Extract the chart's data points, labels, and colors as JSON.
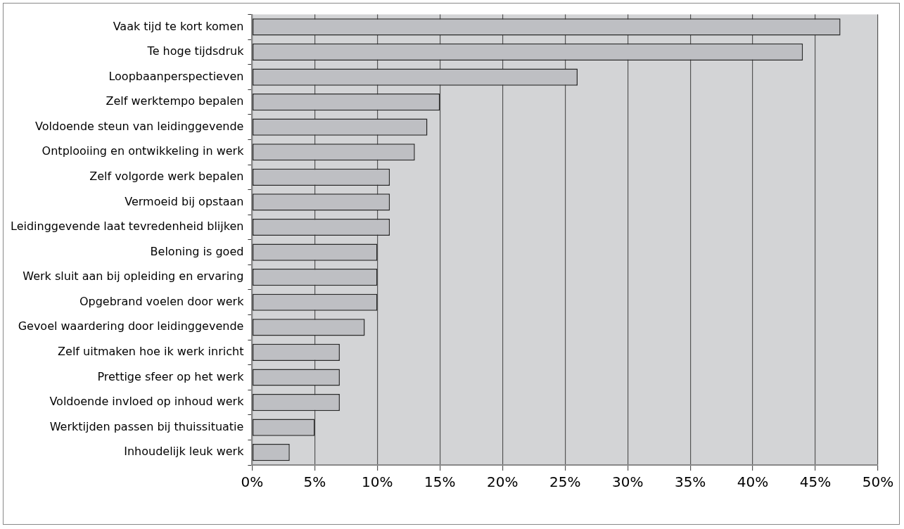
{
  "chart_data": {
    "type": "bar",
    "orientation": "horizontal",
    "categories": [
      "Vaak tijd te kort komen",
      "Te hoge tijdsdruk",
      "Loopbaanperspectieven",
      "Zelf werktempo bepalen",
      "Voldoende steun van leidinggevende",
      "Ontplooiing en ontwikkeling in werk",
      "Zelf volgorde werk bepalen",
      "Vermoeid bij opstaan",
      "Leidinggevende laat tevredenheid blijken",
      "Beloning is goed",
      "Werk sluit aan bij opleiding en ervaring",
      "Opgebrand voelen door werk",
      "Gevoel waardering door leidinggevende",
      "Zelf uitmaken hoe ik werk inricht",
      "Prettige sfeer op het werk",
      "Voldoende invloed op inhoud werk",
      "Werktijden passen bij thuissituatie",
      "Inhoudelijk leuk werk"
    ],
    "values": [
      47,
      44,
      26,
      15,
      14,
      13,
      11,
      11,
      11,
      10,
      10,
      10,
      9,
      7,
      7,
      7,
      5,
      3
    ],
    "color": "#bebfc3",
    "xlim": [
      0,
      50
    ],
    "xticks": [
      {
        "value": 0,
        "label": "0%"
      },
      {
        "value": 5,
        "label": "5%"
      },
      {
        "value": 10,
        "label": "10%"
      },
      {
        "value": 15,
        "label": "15%"
      },
      {
        "value": 20,
        "label": "20%"
      },
      {
        "value": 25,
        "label": "25%"
      },
      {
        "value": 30,
        "label": "30%"
      },
      {
        "value": 35,
        "label": "35%"
      },
      {
        "value": 40,
        "label": "40%"
      },
      {
        "value": 45,
        "label": "45%"
      },
      {
        "value": 50,
        "label": "50%"
      }
    ],
    "grid": "x",
    "legend": false
  }
}
